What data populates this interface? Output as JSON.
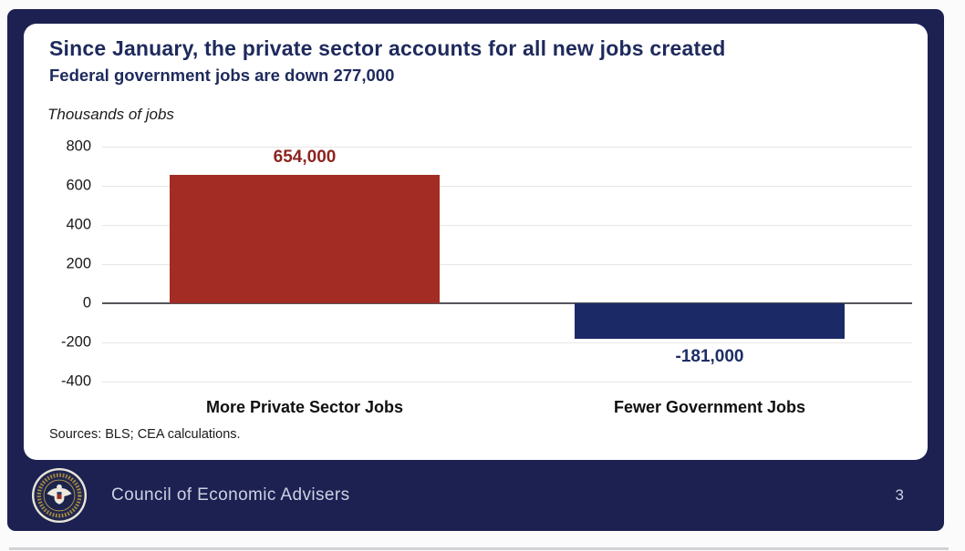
{
  "slide": {
    "title": "Since January, the private sector accounts for all new jobs created",
    "subtitle": "Federal government jobs are down 277,000",
    "axis_title": "Thousands of jobs",
    "sources": "Sources: BLS; CEA calculations.",
    "footer": {
      "org": "Council of Economic Advisers",
      "page": "3",
      "seal": "executive-office-of-the-president-seal"
    }
  },
  "colors": {
    "slide_background": "#1c2152",
    "card_background": "#ffffff",
    "title_text": "#1e2a5c",
    "bar_positive": "#a32c24",
    "bar_negative": "#1b2a67",
    "value_positive_text": "#8c2420",
    "value_negative_text": "#1b2e66",
    "gridline": "#e6e6e3",
    "zero_line": "#55565a",
    "footer_text": "#cdd1e2"
  },
  "chart_data": {
    "type": "bar",
    "title": "Since January, the private sector accounts for all new jobs created",
    "subtitle": "Federal government jobs are down 277,000",
    "ylabel": "Thousands of jobs",
    "xlabel": "",
    "categories": [
      "More Private Sector Jobs",
      "Fewer Government Jobs"
    ],
    "values": [
      654,
      -181
    ],
    "value_labels": [
      "654,000",
      "-181,000"
    ],
    "bar_colors": [
      "#a32c24",
      "#1b2a67"
    ],
    "value_label_colors": [
      "#8c2420",
      "#1b2e66"
    ],
    "yticks": [
      800,
      600,
      400,
      200,
      0,
      -200,
      -400
    ],
    "ylim": [
      -400,
      800
    ],
    "grid": true,
    "legend": false,
    "units": "thousands of jobs",
    "source_note": "Sources: BLS; CEA calculations."
  }
}
